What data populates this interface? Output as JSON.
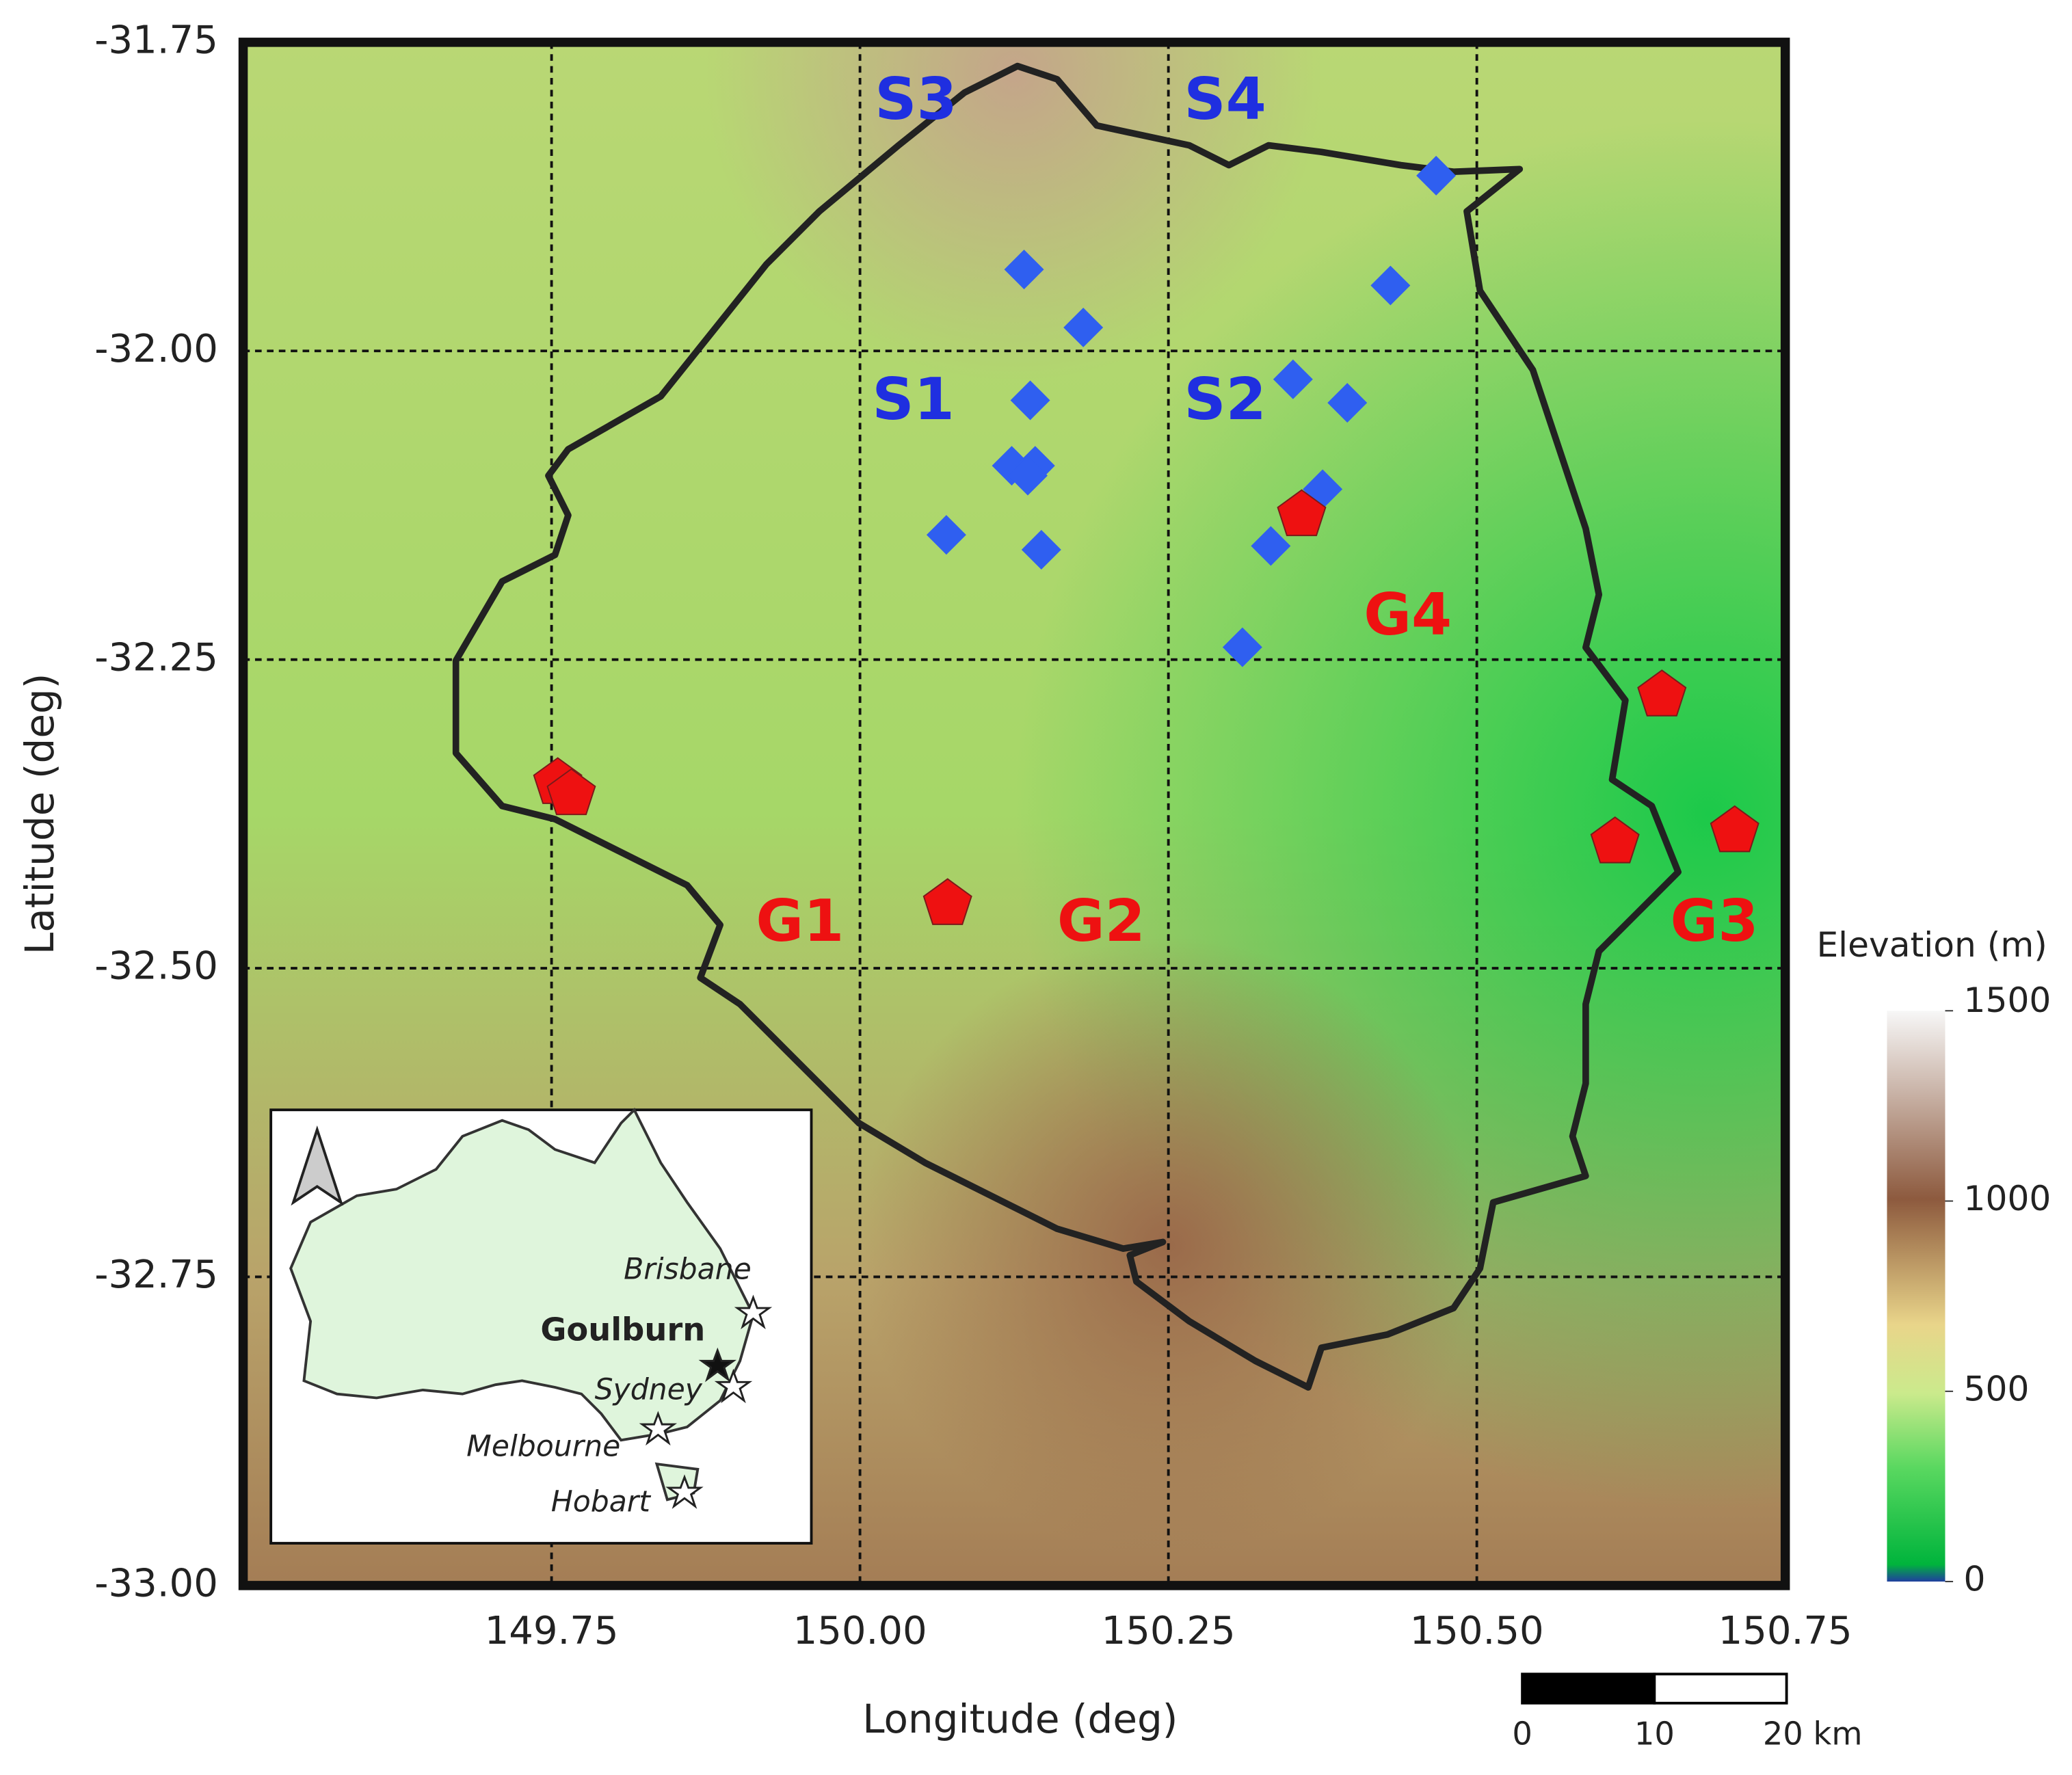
{
  "chart_data": {
    "type": "scatter",
    "x_label": "Longitude (deg)",
    "y_label": "Latitude (deg)",
    "xlim": [
      149.5,
      150.75
    ],
    "ylim": [
      -33.0,
      -31.75
    ],
    "xticks": [
      149.75,
      {
        "value": 150.0,
        "label": "150.00"
      },
      150.25,
      {
        "value": 150.5,
        "label": "150.50"
      },
      150.75
    ],
    "yticks": [
      {
        "value": -33.0,
        "label": "-33.00"
      },
      -32.75,
      {
        "value": -32.5,
        "label": "-32.50"
      },
      -32.25,
      {
        "value": -32.0,
        "label": "-32.00"
      },
      -31.75
    ],
    "grid": true,
    "series": [
      {
        "color": "#2f5ff0",
        "marker": "diamond",
        "x": [
          150.133,
          150.181,
          150.138,
          150.123,
          150.142,
          150.136,
          150.07,
          150.147,
          150.467,
          150.43,
          150.351,
          150.395,
          150.375,
          150.333,
          150.31
        ],
        "y": [
          -31.934,
          -31.981,
          -32.04,
          -32.093,
          -32.093,
          -32.101,
          -32.149,
          -32.161,
          -31.858,
          -31.947,
          -32.023,
          -32.042,
          -32.112,
          -32.158,
          -32.24
        ]
      },
      {
        "color": "#ee1111",
        "marker": "pentagon",
        "x": [
          149.755,
          149.766,
          150.071,
          150.358,
          150.65,
          150.612,
          150.709
        ],
        "y": [
          -32.35,
          -32.359,
          -32.448,
          -32.133,
          -32.279,
          -32.398,
          -32.389
        ]
      }
    ],
    "annotations": [
      "S1",
      "S2",
      "S3",
      "S4",
      "G1",
      "G2",
      "G3",
      "G4"
    ],
    "colorbar": {
      "label": "Elevation (m)",
      "lim": [
        0,
        1500
      ],
      "ticks": [
        0,
        500,
        1000,
        1500
      ]
    },
    "scale_bar": {
      "lim": [
        0,
        20
      ],
      "ticks": [
        0,
        10,
        {
          "value": 20,
          "label": "20 km"
        }
      ]
    },
    "inset": {
      "labels": [
        "Brisbane",
        "Goulburn",
        "Sydney",
        "Melbourne",
        "Hobart"
      ]
    }
  }
}
